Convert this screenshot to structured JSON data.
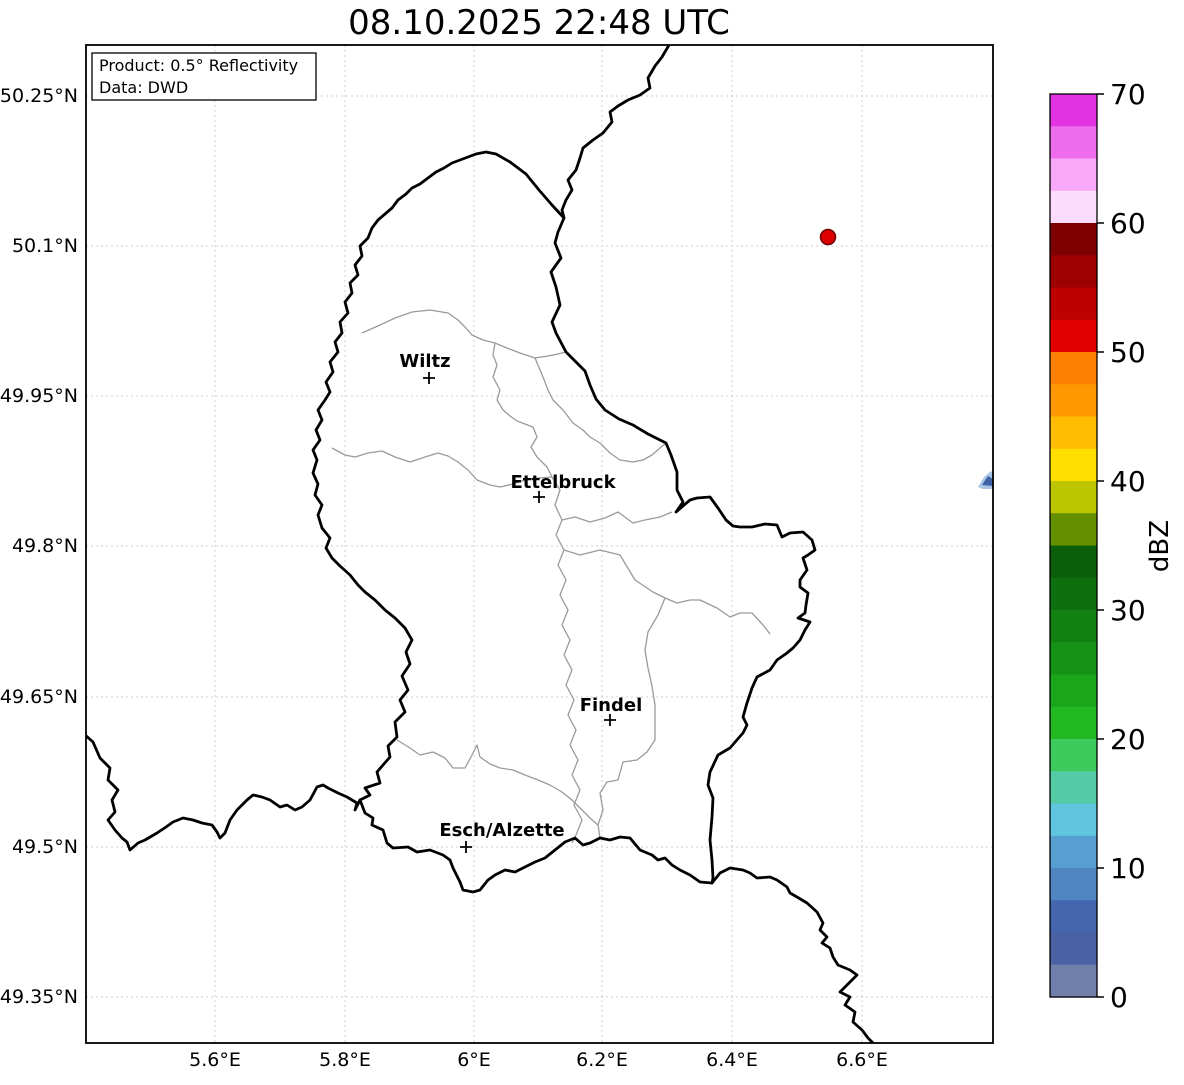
{
  "title": "08.10.2025 22:48 UTC",
  "info_box": {
    "product_line": "Product: 0.5° Reflectivity",
    "data_line": "Data: DWD"
  },
  "map": {
    "x_tick_labels": [
      "5.6°E",
      "5.8°E",
      "6°E",
      "6.2°E",
      "6.4°E",
      "6.6°E"
    ],
    "y_tick_labels": [
      "50.25°N",
      "50.1°N",
      "49.95°N",
      "49.8°N",
      "49.65°N",
      "49.5°N",
      "49.35°N"
    ],
    "cities": [
      {
        "name": "Wiltz"
      },
      {
        "name": "Ettelbruck"
      },
      {
        "name": "Findel"
      },
      {
        "name": "Esch/Alzette"
      }
    ]
  },
  "radar_echoes": {
    "strong_cell_color": "#dd0000",
    "strong_cell_edge_color": "#6b0000",
    "weak_cell_colors": [
      "#a9c6e4",
      "#3f62a5"
    ]
  },
  "colorbar": {
    "label": "dBZ",
    "tick_labels": [
      "70",
      "60",
      "50",
      "40",
      "30",
      "20",
      "10",
      "0"
    ],
    "value_min": 0,
    "value_max": 70,
    "band_step_dbz": 2.5,
    "colors_top_to_bottom": [
      "#e133e1",
      "#ee6cee",
      "#f7a8f7",
      "#fcdcfc",
      "#7f0000",
      "#9c0000",
      "#bd0000",
      "#e00000",
      "#ff7f00",
      "#ff9700",
      "#ffbc00",
      "#ffdf00",
      "#bcc500",
      "#649000",
      "#0b5f0b",
      "#0e6f0e",
      "#128112",
      "#169316",
      "#1ba51b",
      "#21b821",
      "#3fca5e",
      "#55cba5",
      "#60c6e0",
      "#569fd0",
      "#4f86c2",
      "#4565ae",
      "#4a62a4",
      "#7080aa"
    ]
  }
}
